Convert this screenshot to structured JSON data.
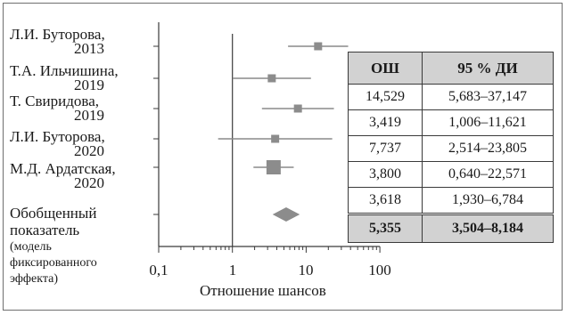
{
  "chart_data": {
    "type": "forest",
    "xlabel": "Отношение шансов",
    "x_scale": "log",
    "xlim": [
      0.1,
      100
    ],
    "xticks": [
      "0,1",
      "1",
      "10",
      "100"
    ],
    "reference_line": 1,
    "studies": [
      {
        "label_line1": "Л.И. Буторова,",
        "label_line2": "2013",
        "or": 14.529,
        "ci_low": 5.683,
        "ci_high": 37.147,
        "or_text": "14,529",
        "ci_text": "5,683–37,147"
      },
      {
        "label_line1": "Т.А. Ильчишина,",
        "label_line2": "2019",
        "or": 3.419,
        "ci_low": 1.006,
        "ci_high": 11.621,
        "or_text": "3,419",
        "ci_text": "1,006–11,621"
      },
      {
        "label_line1": "Т. Свиридова,",
        "label_line2": "2019",
        "or": 7.737,
        "ci_low": 2.514,
        "ci_high": 23.805,
        "or_text": "7,737",
        "ci_text": "2,514–23,805"
      },
      {
        "label_line1": "Л.И. Буторова,",
        "label_line2": "2020",
        "or": 3.8,
        "ci_low": 0.64,
        "ci_high": 22.571,
        "or_text": "3,800",
        "ci_text": "0,640–22,571"
      },
      {
        "label_line1": "М.Д. Ардатская,",
        "label_line2": "2020",
        "or": 3.618,
        "ci_low": 1.93,
        "ci_high": 6.784,
        "or_text": "3,618",
        "ci_text": "1,930–6,784"
      }
    ],
    "pooled": {
      "label_line1": "Обобщенный",
      "label_line2": "показатель",
      "note_lines": [
        "(модель",
        "фиксированного",
        "эффекта)"
      ],
      "or": 5.355,
      "ci_low": 3.504,
      "ci_high": 8.184,
      "or_text": "5,355",
      "ci_text": "3,504–8,184"
    },
    "table_headers": [
      "ОШ",
      "95 % ДИ"
    ]
  }
}
